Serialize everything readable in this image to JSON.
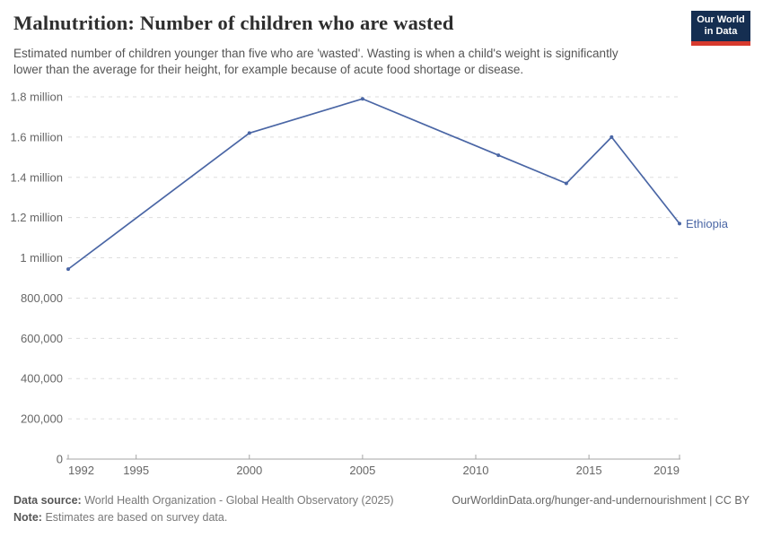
{
  "header": {
    "title": "Malnutrition: Number of children who are wasted",
    "subtitle": "Estimated number of children younger than five who are 'wasted'. Wasting is when a child's weight is significantly lower than the average for their height, for example because of acute food shortage or disease.",
    "logo": {
      "line1": "Our World",
      "line2": "in Data",
      "bg_color": "#152e51",
      "bar_color": "#d73a2e"
    }
  },
  "chart_data": {
    "type": "line",
    "title": "Malnutrition: Number of children who are wasted",
    "series": [
      {
        "name": "Ethiopia",
        "x": [
          1992,
          2000,
          2005,
          2011,
          2014,
          2016,
          2019
        ],
        "values": [
          944000,
          1620000,
          1790000,
          1510000,
          1370000,
          1600000,
          1170000
        ]
      }
    ],
    "xlabel": "",
    "ylabel": "",
    "xlim": [
      1992,
      2019
    ],
    "ylim": [
      0,
      1800000
    ],
    "xticks": [
      "1992",
      "1995",
      "2000",
      "2005",
      "2010",
      "2015",
      "2019"
    ],
    "xtick_years": [
      1992,
      1995,
      2000,
      2005,
      2010,
      2015,
      2019
    ],
    "yticks": [
      {
        "value": 1800000,
        "label": "1.8 million"
      },
      {
        "value": 1600000,
        "label": "1.6 million"
      },
      {
        "value": 1400000,
        "label": "1.4 million"
      },
      {
        "value": 1200000,
        "label": "1.2 million"
      },
      {
        "value": 1000000,
        "label": "1 million"
      },
      {
        "value": 800000,
        "label": "800,000"
      },
      {
        "value": 600000,
        "label": "600,000"
      },
      {
        "value": 400000,
        "label": "400,000"
      },
      {
        "value": 200000,
        "label": "200,000"
      },
      {
        "value": 0,
        "label": "0"
      }
    ],
    "grid": "horizontal-dashed",
    "legend_position": "end-of-line",
    "line_color": "#4a66a5",
    "grid_color": "#dddddd",
    "axis_color": "#a5a5a5",
    "tick_label_color": "#666666"
  },
  "footer": {
    "data_source_label": "Data source:",
    "data_source_value": "World Health Organization - Global Health Observatory (2025)",
    "link": "OurWorldinData.org/hunger-and-undernourishment | CC BY",
    "note_label": "Note:",
    "note_value": "Estimates are based on survey data."
  }
}
